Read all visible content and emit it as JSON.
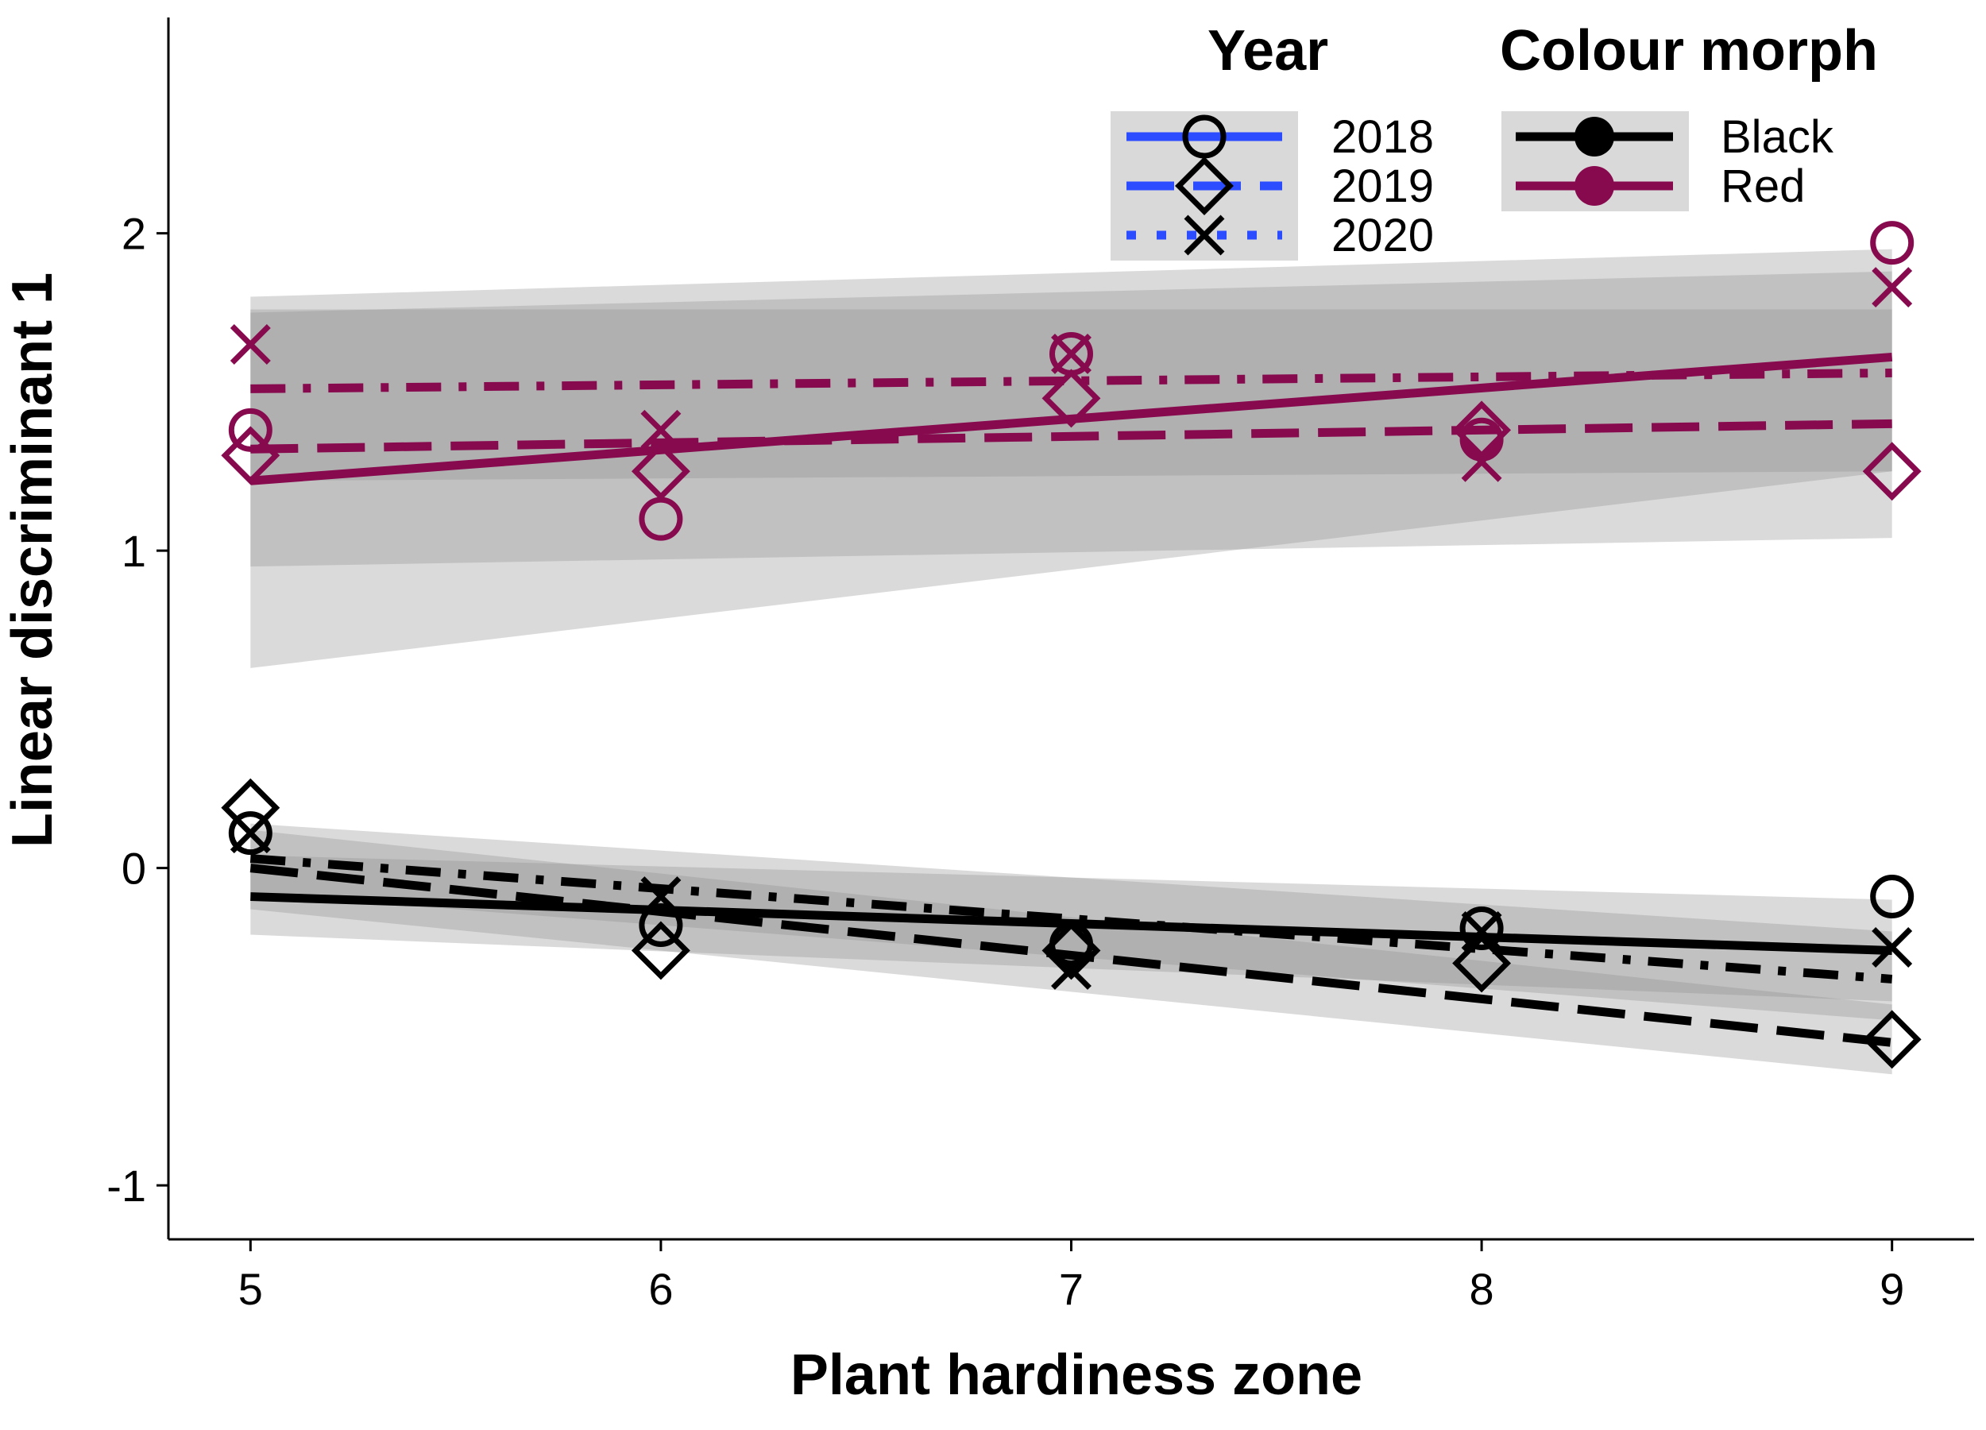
{
  "chart_data": {
    "type": "line",
    "xlabel": "Plant hardiness zone",
    "ylabel": "Linear discriminant 1",
    "xlim": [
      4.8,
      9.2
    ],
    "ylim": [
      -1.17,
      2.68
    ],
    "x_ticks": [
      5,
      6,
      7,
      8,
      9
    ],
    "y_ticks": [
      -1,
      0,
      1,
      2
    ],
    "x_tick_labels": [
      "5",
      "6",
      "7",
      "8",
      "9"
    ],
    "y_tick_labels": [
      "-1",
      "0",
      "1",
      "2"
    ],
    "grid": false,
    "legend_position": "top-right",
    "legend": {
      "year": {
        "title": "Year",
        "entries": [
          {
            "label": "2018",
            "shape": "circle",
            "line": "solid"
          },
          {
            "label": "2019",
            "shape": "diamond",
            "line": "dashed"
          },
          {
            "label": "2020",
            "shape": "x",
            "line": "dotdash"
          }
        ],
        "line_color": "#2b4cff"
      },
      "morph": {
        "title": "Colour morph",
        "entries": [
          {
            "label": "Black",
            "color": "#000000"
          },
          {
            "label": "Red",
            "color": "#870a4f"
          }
        ]
      }
    },
    "colors": {
      "Black": "#000000",
      "Red": "#870a4f",
      "ribbon": "#bdbdbd"
    },
    "points": [
      {
        "morph": "Red",
        "year": "2018",
        "x": [
          5,
          6,
          7,
          8,
          9
        ],
        "y": [
          1.38,
          1.1,
          1.62,
          1.35,
          1.97
        ]
      },
      {
        "morph": "Red",
        "year": "2019",
        "x": [
          5,
          6,
          7,
          8,
          9
        ],
        "y": [
          1.3,
          1.25,
          1.48,
          1.38,
          1.25
        ]
      },
      {
        "morph": "Red",
        "year": "2020",
        "x": [
          5,
          6,
          7,
          8,
          9
        ],
        "y": [
          1.65,
          1.38,
          1.62,
          1.28,
          1.83
        ]
      },
      {
        "morph": "Black",
        "year": "2018",
        "x": [
          5,
          6,
          7,
          8,
          9
        ],
        "y": [
          0.11,
          -0.18,
          -0.24,
          -0.19,
          -0.09
        ]
      },
      {
        "morph": "Black",
        "year": "2019",
        "x": [
          5,
          6,
          7,
          8,
          9
        ],
        "y": [
          0.19,
          -0.26,
          -0.26,
          -0.3,
          -0.54
        ]
      },
      {
        "morph": "Black",
        "year": "2020",
        "x": [
          5,
          6,
          7,
          8,
          9
        ],
        "y": [
          0.11,
          -0.09,
          -0.32,
          -0.2,
          -0.25
        ]
      }
    ],
    "fits": [
      {
        "morph": "Red",
        "year": "2018",
        "x": [
          5,
          9
        ],
        "y": [
          1.22,
          1.61
        ],
        "ci_lower": [
          0.63,
          1.25
        ],
        "ci_upper": [
          1.8,
          1.95
        ]
      },
      {
        "morph": "Red",
        "year": "2019",
        "x": [
          5,
          9
        ],
        "y": [
          1.32,
          1.4
        ],
        "ci_lower": [
          0.95,
          1.04
        ],
        "ci_upper": [
          1.76,
          1.76
        ]
      },
      {
        "morph": "Red",
        "year": "2020",
        "x": [
          5,
          9
        ],
        "y": [
          1.51,
          1.56
        ],
        "ci_lower": [
          1.22,
          1.25
        ],
        "ci_upper": [
          1.75,
          1.88
        ]
      },
      {
        "morph": "Black",
        "year": "2018",
        "x": [
          5,
          9
        ],
        "y": [
          -0.09,
          -0.26
        ],
        "ci_lower": [
          -0.21,
          -0.42
        ],
        "ci_upper": [
          0.04,
          -0.1
        ]
      },
      {
        "morph": "Black",
        "year": "2019",
        "x": [
          5,
          9
        ],
        "y": [
          0.0,
          -0.55
        ],
        "ci_lower": [
          -0.13,
          -0.65
        ],
        "ci_upper": [
          0.12,
          -0.43
        ]
      },
      {
        "morph": "Black",
        "year": "2020",
        "x": [
          5,
          9
        ],
        "y": [
          0.03,
          -0.35
        ],
        "ci_lower": [
          -0.08,
          -0.48
        ],
        "ci_upper": [
          0.14,
          -0.2
        ]
      }
    ]
  }
}
